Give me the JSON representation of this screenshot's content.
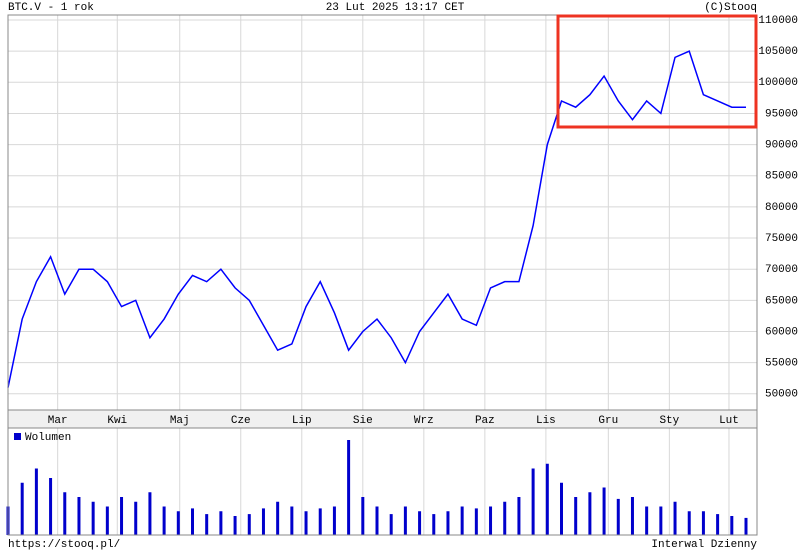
{
  "chart_data": {
    "type": "line",
    "title": "BTC.V - 1 rok",
    "subtitle": "23 Lut 2025 13:17 CET",
    "source": "(C)Stooq",
    "footer_left": "https://stooq.pl/",
    "footer_right": "Interwal Dzienny",
    "xlim": [
      0,
      52
    ],
    "xticks": [
      {
        "value": 3.5,
        "label": "Mar"
      },
      {
        "value": 7.7,
        "label": "Kwi"
      },
      {
        "value": 12.1,
        "label": "Maj"
      },
      {
        "value": 16.4,
        "label": "Cze"
      },
      {
        "value": 20.7,
        "label": "Lip"
      },
      {
        "value": 25.0,
        "label": "Sie"
      },
      {
        "value": 29.3,
        "label": "Wrz"
      },
      {
        "value": 33.6,
        "label": "Paz"
      },
      {
        "value": 37.9,
        "label": "Lis"
      },
      {
        "value": 42.3,
        "label": "Gru"
      },
      {
        "value": 46.6,
        "label": "Sty"
      },
      {
        "value": 50.8,
        "label": "Lut"
      }
    ],
    "ylim": [
      47400,
      110800
    ],
    "yticks": [
      50000,
      55000,
      60000,
      65000,
      70000,
      75000,
      80000,
      85000,
      90000,
      95000,
      100000,
      105000,
      110000
    ],
    "grid": true,
    "series": [
      {
        "name": "BTC.V",
        "color": "#0000ff",
        "values": [
          51000,
          62000,
          68000,
          72000,
          66000,
          70000,
          70000,
          68000,
          64000,
          65000,
          59000,
          62000,
          66000,
          69000,
          68000,
          70000,
          67000,
          65000,
          61000,
          57000,
          58000,
          64000,
          68000,
          63000,
          57000,
          60000,
          62000,
          59000,
          55000,
          60000,
          63000,
          66000,
          62000,
          61000,
          67000,
          68000,
          68000,
          77000,
          90000,
          97000,
          96000,
          98000,
          101000,
          97000,
          94000,
          97000,
          95000,
          104000,
          105000,
          98000,
          97000,
          96000,
          96000
        ]
      }
    ],
    "volume": {
      "name": "Wolumen",
      "color": "#0000cc",
      "vlim": [
        0,
        100
      ],
      "values": [
        30,
        55,
        70,
        60,
        45,
        40,
        35,
        30,
        40,
        35,
        45,
        30,
        25,
        28,
        22,
        25,
        20,
        22,
        28,
        35,
        30,
        25,
        28,
        30,
        100,
        40,
        30,
        22,
        30,
        25,
        22,
        25,
        30,
        28,
        30,
        35,
        40,
        70,
        75,
        55,
        40,
        45,
        50,
        38,
        40,
        30,
        30,
        35,
        25,
        25,
        22,
        20,
        18
      ]
    }
  }
}
